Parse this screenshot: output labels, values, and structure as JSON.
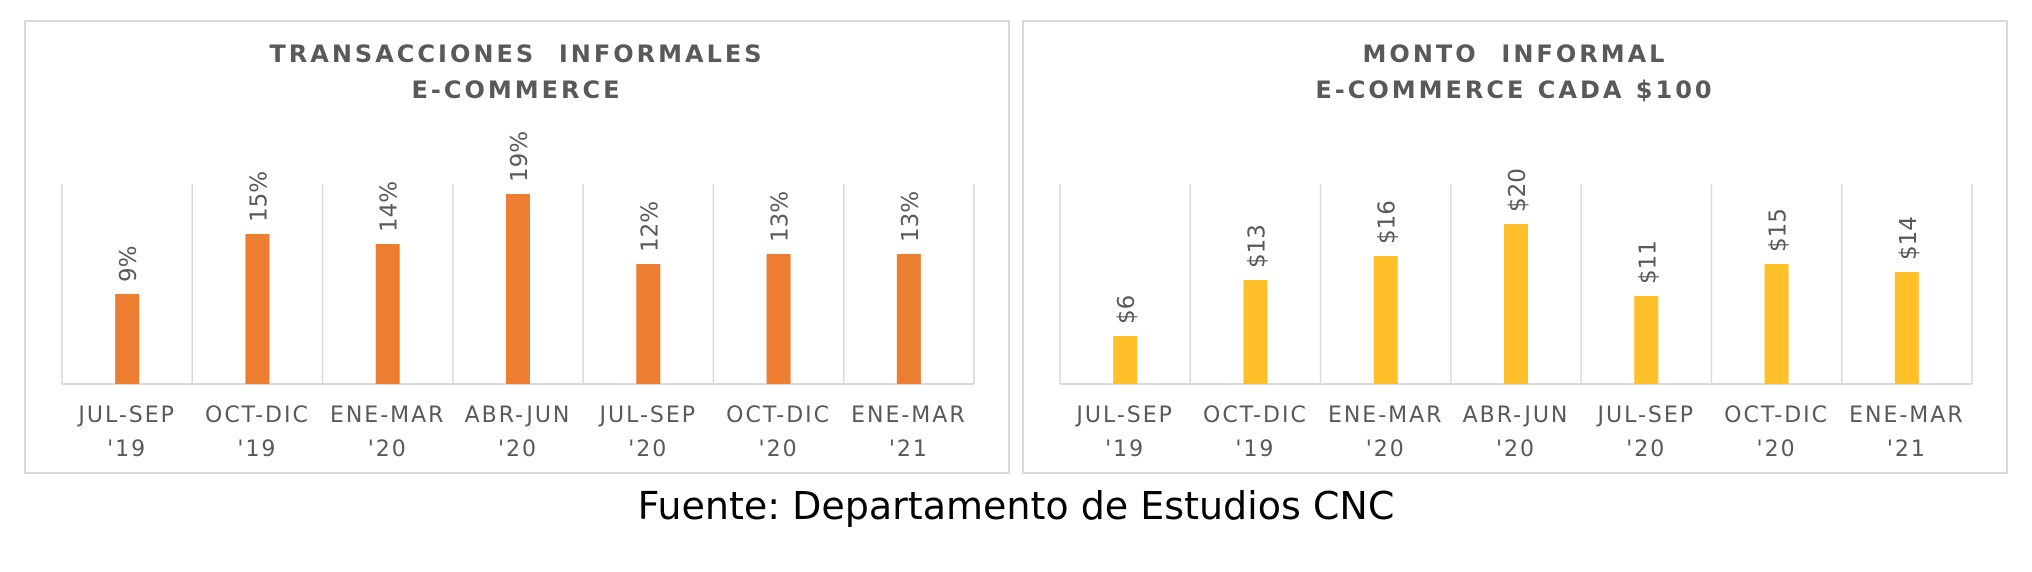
{
  "source_note": "Fuente: Departamento de Estudios CNC",
  "chart_data": [
    {
      "type": "bar",
      "title": [
        "TRANSACCIONES  INFORMALES",
        "E-COMMERCE"
      ],
      "categories": [
        [
          "JUL-SEP",
          "'19"
        ],
        [
          "OCT-DIC",
          "'19"
        ],
        [
          "ENE-MAR",
          "'20"
        ],
        [
          "ABR-JUN",
          "'20"
        ],
        [
          "JUL-SEP",
          "'20"
        ],
        [
          "OCT-DIC",
          "'20"
        ],
        [
          "ENE-MAR",
          "'21"
        ]
      ],
      "values": [
        9,
        15,
        14,
        19,
        12,
        13,
        13
      ],
      "data_labels": [
        "9%",
        "15%",
        "14%",
        "19%",
        "12%",
        "13%",
        "13%"
      ],
      "unit": "%",
      "color": "#ed7d31",
      "ylim": [
        0,
        20
      ],
      "grid": "vertical category separators"
    },
    {
      "type": "bar",
      "title": [
        "MONTO  INFORMAL",
        "E-COMMERCE CADA $100"
      ],
      "categories": [
        [
          "JUL-SEP",
          "'19"
        ],
        [
          "OCT-DIC",
          "'19"
        ],
        [
          "ENE-MAR",
          "'20"
        ],
        [
          "ABR-JUN",
          "'20"
        ],
        [
          "JUL-SEP",
          "'20"
        ],
        [
          "OCT-DIC",
          "'20"
        ],
        [
          "ENE-MAR",
          "'21"
        ]
      ],
      "values": [
        6,
        13,
        16,
        20,
        11,
        15,
        14
      ],
      "data_labels": [
        "$6",
        "$13",
        "$16",
        "$20",
        "$11",
        "$15",
        "$14"
      ],
      "unit": "$",
      "color": "#ffc02a",
      "ylim": [
        0,
        25
      ],
      "grid": "vertical category separators"
    }
  ]
}
